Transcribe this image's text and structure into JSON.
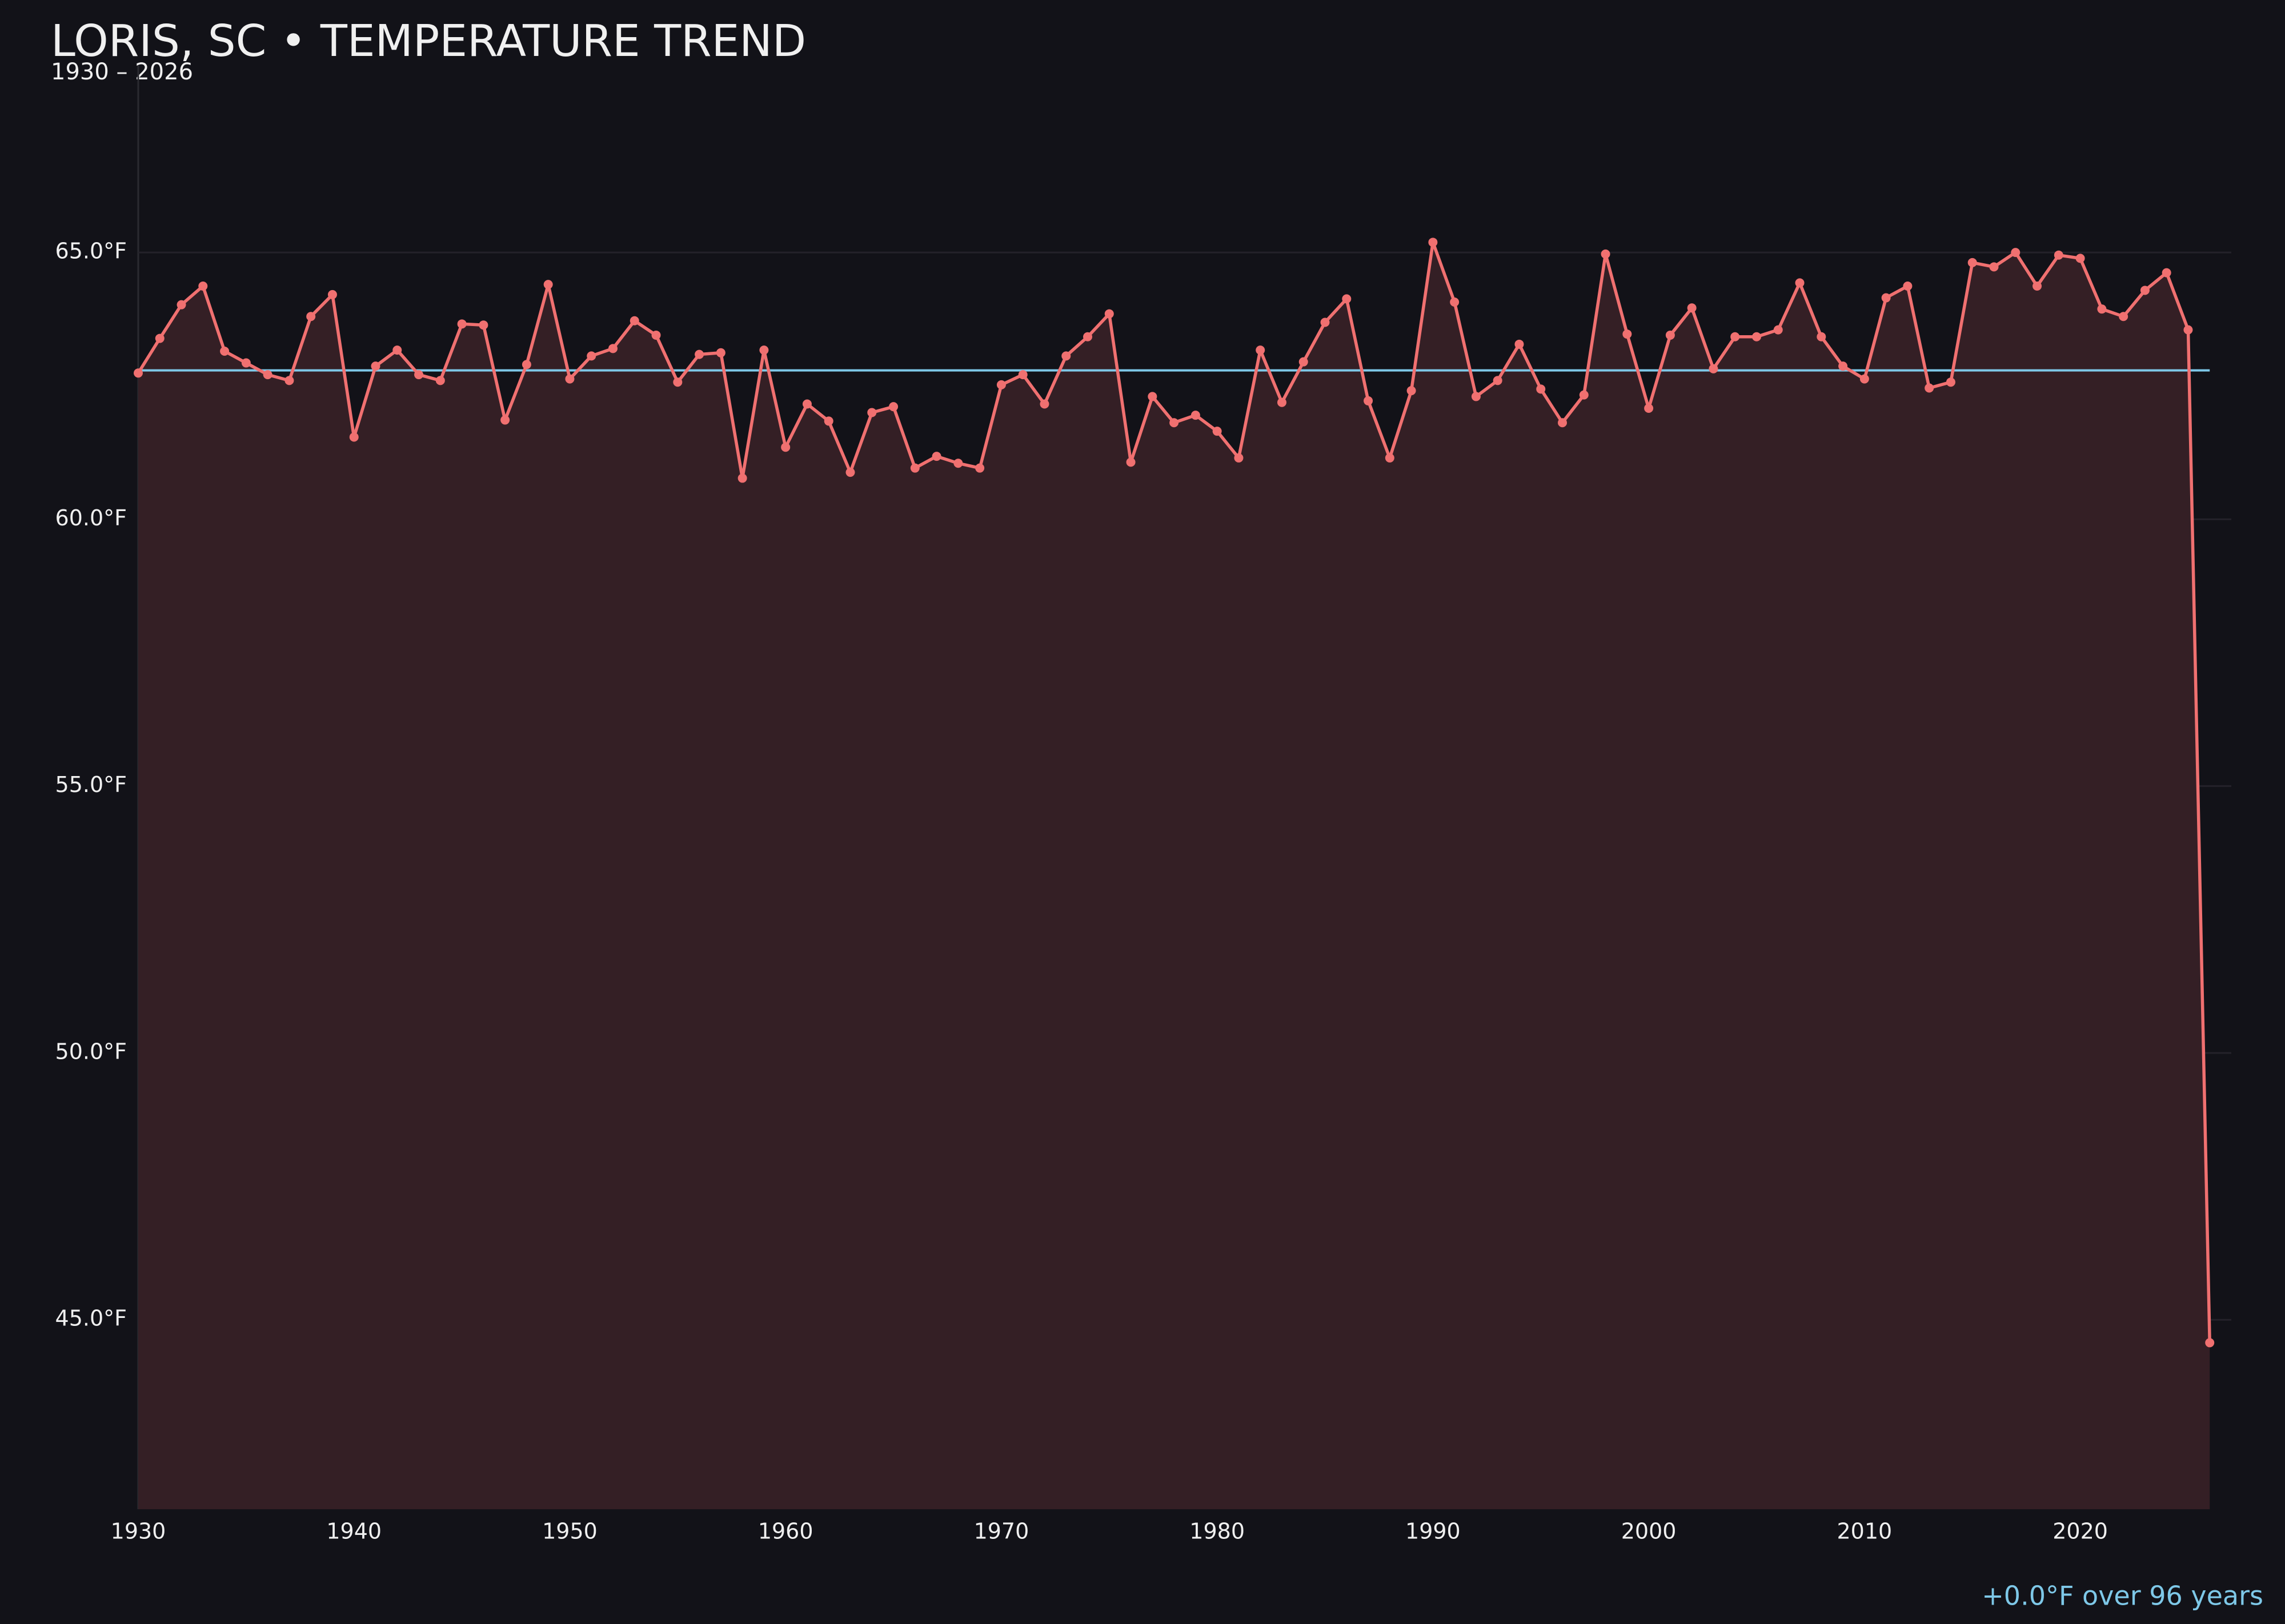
{
  "chart_data": {
    "type": "line",
    "title": "LORIS, SC • TEMPERATURE TREND",
    "subtitle": "1930 – 2026",
    "annotation": "+0.0°F over 96 years",
    "x": [
      1930,
      1931,
      1932,
      1933,
      1934,
      1935,
      1936,
      1937,
      1938,
      1939,
      1940,
      1941,
      1942,
      1943,
      1944,
      1945,
      1946,
      1947,
      1948,
      1949,
      1950,
      1951,
      1952,
      1953,
      1954,
      1955,
      1956,
      1957,
      1958,
      1959,
      1960,
      1961,
      1962,
      1963,
      1964,
      1965,
      1966,
      1967,
      1968,
      1969,
      1970,
      1971,
      1972,
      1973,
      1974,
      1975,
      1976,
      1977,
      1978,
      1979,
      1980,
      1981,
      1982,
      1983,
      1984,
      1985,
      1986,
      1987,
      1988,
      1989,
      1990,
      1991,
      1992,
      1993,
      1994,
      1995,
      1996,
      1997,
      1998,
      1999,
      2000,
      2001,
      2002,
      2003,
      2004,
      2005,
      2006,
      2007,
      2008,
      2009,
      2010,
      2011,
      2012,
      2013,
      2014,
      2015,
      2016,
      2017,
      2018,
      2019,
      2020,
      2021,
      2022,
      2023,
      2024,
      2025,
      2026
    ],
    "series": [
      {
        "color": "#f07070",
        "fill": "#341f25",
        "values": [
          62.74,
          63.39,
          64.02,
          64.37,
          63.15,
          62.93,
          62.71,
          62.6,
          63.8,
          64.21,
          61.54,
          62.87,
          63.17,
          62.71,
          62.6,
          63.66,
          63.64,
          61.86,
          62.9,
          64.4,
          62.63,
          63.06,
          63.2,
          63.72,
          63.45,
          62.57,
          63.09,
          63.12,
          60.77,
          63.17,
          61.35,
          62.16,
          61.84,
          60.88,
          62.0,
          62.11,
          60.96,
          61.18,
          61.05,
          60.96,
          62.52,
          62.71,
          62.16,
          63.06,
          63.42,
          63.85,
          61.07,
          62.3,
          61.81,
          61.95,
          61.65,
          61.15,
          63.17,
          62.19,
          62.95,
          63.69,
          64.13,
          62.22,
          61.15,
          62.41,
          65.19,
          64.07,
          62.3,
          62.6,
          63.28,
          62.44,
          61.81,
          62.33,
          64.97,
          63.47,
          62.08,
          63.45,
          63.96,
          62.82,
          63.42,
          63.42,
          63.55,
          64.43,
          63.42,
          62.87,
          62.63,
          64.15,
          64.37,
          62.46,
          62.57,
          64.81,
          64.73,
          65.0,
          64.37,
          64.95,
          64.89,
          63.94,
          63.8,
          64.29,
          64.62,
          63.55,
          44.57
        ]
      }
    ],
    "reference_line": {
      "value": 62.79,
      "color": "#7ec8e8"
    },
    "xlim": [
      1930,
      2027
    ],
    "ylim": [
      41.45,
      68.5
    ],
    "xticks": [
      1930,
      1940,
      1950,
      1960,
      1970,
      1980,
      1990,
      2000,
      2010,
      2020
    ],
    "yticks": [
      {
        "value": 45,
        "label": "45.0°F"
      },
      {
        "value": 50,
        "label": "50.0°F"
      },
      {
        "value": 55,
        "label": "55.0°F"
      },
      {
        "value": 60,
        "label": "60.0°F"
      },
      {
        "value": 65,
        "label": "65.0°F"
      }
    ],
    "grid": true
  }
}
